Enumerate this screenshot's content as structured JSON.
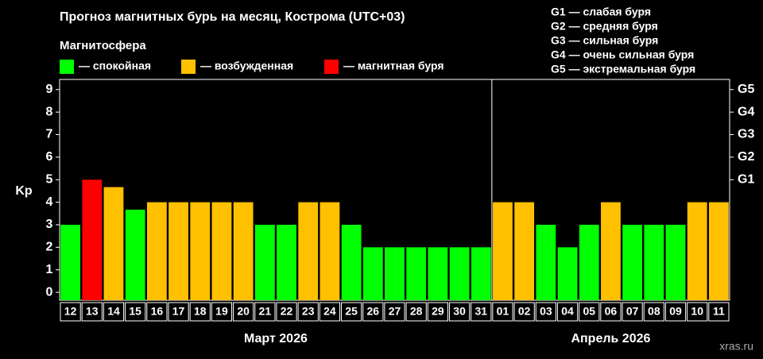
{
  "chart_data": {
    "type": "bar",
    "title": "Прогноз магнитных бурь на месяц, Кострома (UTC+03)",
    "legend_title": "Магнитосфера",
    "legend": [
      {
        "name": "— спокойная",
        "color": "#00ff00"
      },
      {
        "name": "— возбужденная",
        "color": "#ffc000"
      },
      {
        "name": "— магнитная буря",
        "color": "#ff0000"
      }
    ],
    "storm_levels": [
      "G1 — слабая буря",
      "G2 — средняя буря",
      "G3 — сильная буря",
      "G4 — очень сильная буря",
      "G5 — экстремальная буря"
    ],
    "y_label": "Kp",
    "categories": [
      "12",
      "13",
      "14",
      "15",
      "16",
      "17",
      "18",
      "19",
      "20",
      "21",
      "22",
      "23",
      "24",
      "25",
      "26",
      "27",
      "28",
      "29",
      "30",
      "31",
      "01",
      "02",
      "03",
      "04",
      "05",
      "06",
      "07",
      "08",
      "09",
      "10",
      "11"
    ],
    "values": [
      3,
      5,
      4.67,
      3.67,
      4,
      4,
      4,
      4,
      4,
      3,
      3,
      4,
      4,
      3,
      2,
      2,
      2,
      2,
      2,
      2,
      4,
      4,
      3,
      2,
      3,
      4,
      3,
      3,
      3,
      4,
      4
    ],
    "colors": [
      "#00ff00",
      "#ff0000",
      "#ffc000",
      "#00ff00",
      "#ffc000",
      "#ffc000",
      "#ffc000",
      "#ffc000",
      "#ffc000",
      "#00ff00",
      "#00ff00",
      "#ffc000",
      "#ffc000",
      "#00ff00",
      "#00ff00",
      "#00ff00",
      "#00ff00",
      "#00ff00",
      "#00ff00",
      "#00ff00",
      "#ffc000",
      "#ffc000",
      "#00ff00",
      "#00ff00",
      "#00ff00",
      "#ffc000",
      "#00ff00",
      "#00ff00",
      "#00ff00",
      "#ffc000",
      "#ffc000"
    ],
    "x_groups": [
      "Март 2026",
      "Апрель 2026"
    ],
    "ylim": [
      -0.35,
      9.45
    ],
    "yticks": [
      0,
      1,
      2,
      3,
      4,
      5,
      6,
      7,
      8,
      9
    ],
    "y2lim": [
      -0.35,
      9.45
    ],
    "y2ticks": [
      {
        "value": 5,
        "label": "G1"
      },
      {
        "value": 6,
        "label": "G2"
      },
      {
        "value": 7,
        "label": "G3"
      },
      {
        "value": 8,
        "label": "G4"
      },
      {
        "value": 9,
        "label": "G5"
      }
    ],
    "source": "xras.ru"
  }
}
